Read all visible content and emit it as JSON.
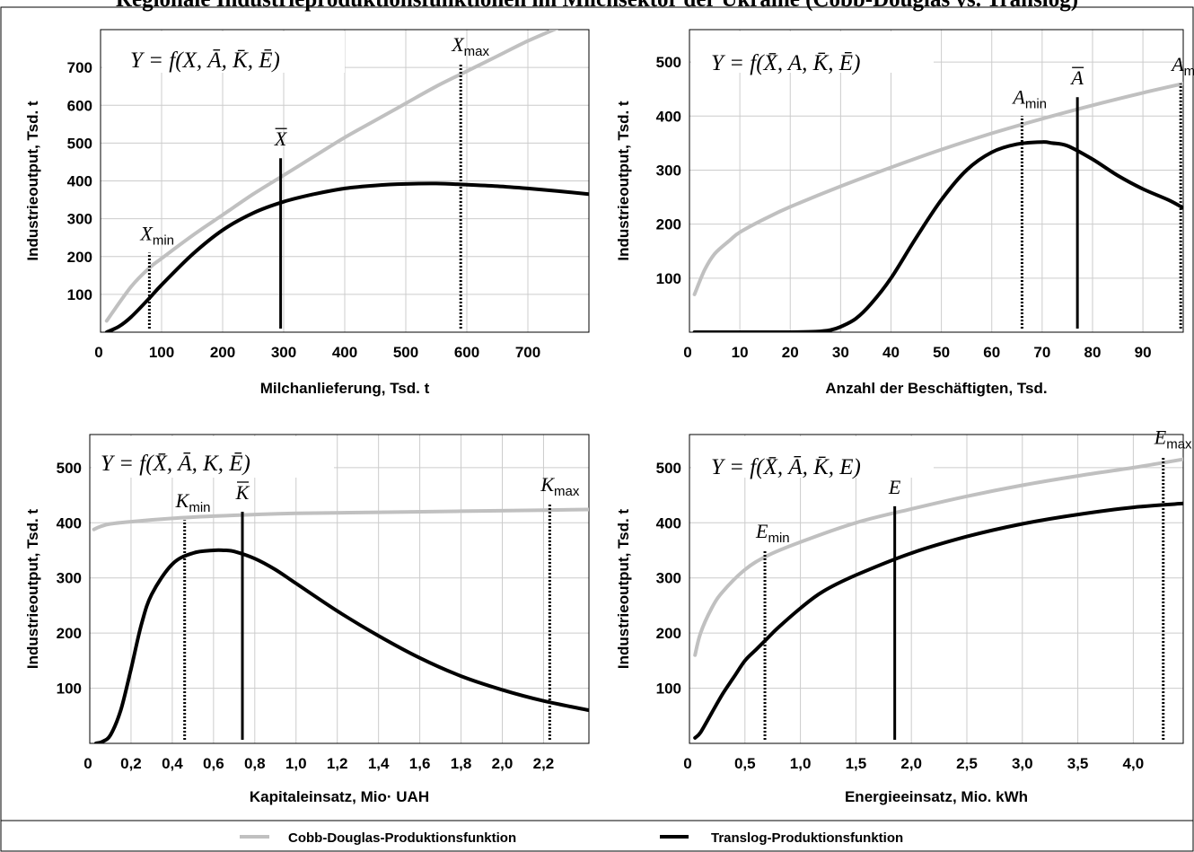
{
  "title": "Regionale Industrieproduktionsfunktionen im Milchsektor der Ukraine (Cobb-Douglas vs. Translog)",
  "legend": {
    "cobb_douglas": "Cobb-Douglas-Produktionsfunktion",
    "translog": "Translog-Produktionsfunktion"
  },
  "colors": {
    "cobb_douglas": "#c0c0c0",
    "translog": "#000000",
    "grid": "#cccccc"
  },
  "chart_data": [
    {
      "type": "line",
      "formula": "Y = f(X, Ā, K̄, Ē)",
      "ylabel": "Industrieoutput, Tsd. t",
      "xlabel": "Milchanlieferung, Tsd. t",
      "xlim": [
        0,
        800
      ],
      "ylim": [
        0,
        800
      ],
      "xticks": [
        100,
        200,
        300,
        400,
        500,
        600,
        700
      ],
      "xtick_labels": [
        "0",
        "100",
        "200",
        "300",
        "400",
        "500",
        "600",
        "700"
      ],
      "yticks": [
        100,
        200,
        300,
        400,
        500,
        600,
        700
      ],
      "ytick_labels": [
        "100",
        "200",
        "300",
        "400",
        "500",
        "600",
        "700"
      ],
      "grid": true,
      "series": [
        {
          "name": "Cobb-Douglas-Produktionsfunktion",
          "x": [
            10,
            50,
            80,
            100,
            150,
            200,
            250,
            300,
            350,
            400,
            450,
            500,
            550,
            600,
            650,
            700,
            750
          ],
          "y": [
            30,
            120,
            170,
            195,
            255,
            310,
            365,
            415,
            465,
            515,
            560,
            605,
            650,
            690,
            730,
            770,
            805
          ]
        },
        {
          "name": "Translog-Produktionsfunktion",
          "x": [
            10,
            30,
            50,
            80,
            100,
            150,
            200,
            250,
            300,
            350,
            400,
            450,
            500,
            550,
            600,
            650,
            700,
            750,
            800
          ],
          "y": [
            0,
            15,
            40,
            90,
            125,
            205,
            270,
            315,
            345,
            365,
            380,
            388,
            392,
            393,
            390,
            386,
            380,
            373,
            365
          ]
        }
      ],
      "markers": [
        {
          "label": "X",
          "sub": "min",
          "x": 80,
          "style": "dotted",
          "top": 210
        },
        {
          "label": "X",
          "sub": "",
          "bar": true,
          "x": 295,
          "style": "solid",
          "top": 460
        },
        {
          "label": "X",
          "sub": "max",
          "x": 590,
          "style": "dotted",
          "top": 710
        }
      ]
    },
    {
      "type": "line",
      "formula": "Y = f(X̄, A, K̄, Ē)",
      "ylabel": "Industrieoutput, Tsd. t",
      "xlabel": "Anzahl der Beschäftigten, Tsd.",
      "xlim": [
        0,
        98
      ],
      "ylim": [
        0,
        560
      ],
      "xticks": [
        10,
        20,
        30,
        40,
        50,
        60,
        70,
        80,
        90
      ],
      "xtick_labels": [
        "0",
        "10",
        "20",
        "30",
        "40",
        "50",
        "60",
        "70",
        "80",
        "90"
      ],
      "yticks": [
        100,
        200,
        300,
        400,
        500
      ],
      "ytick_labels": [
        "100",
        "200",
        "300",
        "400",
        "500"
      ],
      "grid": true,
      "series": [
        {
          "name": "Cobb-Douglas-Produktionsfunktion",
          "x": [
            1,
            3,
            5,
            8,
            10,
            15,
            20,
            30,
            40,
            50,
            60,
            70,
            80,
            90,
            98
          ],
          "y": [
            70,
            115,
            145,
            170,
            185,
            210,
            232,
            270,
            305,
            338,
            368,
            395,
            420,
            443,
            460
          ]
        },
        {
          "name": "Translog-Produktionsfunktion",
          "x": [
            1,
            10,
            20,
            25,
            28,
            30,
            33,
            36,
            40,
            45,
            50,
            55,
            60,
            65,
            70,
            72,
            75,
            80,
            85,
            90,
            95,
            98
          ],
          "y": [
            0,
            0,
            0,
            1,
            4,
            10,
            25,
            52,
            100,
            175,
            245,
            300,
            333,
            348,
            352,
            350,
            345,
            320,
            290,
            265,
            245,
            230
          ]
        }
      ],
      "markers": [
        {
          "label": "A",
          "sub": "min",
          "x": 66,
          "style": "dotted",
          "top": 400
        },
        {
          "label": "A",
          "sub": "",
          "bar": true,
          "x": 77,
          "style": "solid",
          "top": 435
        },
        {
          "label": "A",
          "sub": "max",
          "x": 97.5,
          "style": "dotted",
          "top": 460
        }
      ]
    },
    {
      "type": "line",
      "formula": "Y = f(X̄, Ā, K, Ē)",
      "ylabel": "Industrieoutput, Tsd. t",
      "xlabel": "Kapitaleinsatz, Mio· UAH",
      "xlim": [
        0,
        2.42
      ],
      "ylim": [
        0,
        560
      ],
      "xticks": [
        0.2,
        0.4,
        0.6,
        0.8,
        1.0,
        1.2,
        1.4,
        1.6,
        1.8,
        2.0,
        2.2
      ],
      "xtick_labels": [
        "0",
        "0,2",
        "0,4",
        "0,6",
        "0,8",
        "1,0",
        "1,2",
        "1,4",
        "1,6",
        "1,8",
        "2,0",
        "2,2"
      ],
      "yticks": [
        100,
        200,
        300,
        400,
        500
      ],
      "ytick_labels": [
        "100",
        "200",
        "300",
        "400",
        "500"
      ],
      "grid": true,
      "series": [
        {
          "name": "Cobb-Douglas-Produktionsfunktion",
          "x": [
            0.02,
            0.05,
            0.1,
            0.2,
            0.4,
            0.6,
            0.8,
            1.0,
            1.4,
            1.8,
            2.2,
            2.42
          ],
          "y": [
            388,
            393,
            398,
            402,
            408,
            412,
            415,
            417,
            419,
            421,
            423,
            424
          ]
        },
        {
          "name": "Translog-Produktionsfunktion",
          "x": [
            0.03,
            0.06,
            0.1,
            0.15,
            0.2,
            0.25,
            0.3,
            0.4,
            0.5,
            0.6,
            0.65,
            0.7,
            0.8,
            0.9,
            1.0,
            1.2,
            1.4,
            1.6,
            1.8,
            2.0,
            2.2,
            2.42
          ],
          "y": [
            0,
            3,
            15,
            60,
            135,
            215,
            270,
            325,
            345,
            350,
            350,
            348,
            335,
            315,
            290,
            240,
            195,
            155,
            122,
            97,
            77,
            60
          ]
        }
      ],
      "markers": [
        {
          "label": "K",
          "sub": "min",
          "x": 0.46,
          "style": "dotted",
          "top": 405
        },
        {
          "label": "K",
          "sub": "",
          "bar": true,
          "x": 0.74,
          "style": "solid",
          "top": 420
        },
        {
          "label": "K",
          "sub": "max",
          "x": 2.23,
          "style": "dotted",
          "top": 435
        }
      ]
    },
    {
      "type": "line",
      "formula": "Y = f(X̄, Ā, K̄, E)",
      "ylabel": "Industrieoutput, Tsd. t",
      "xlabel": "Energieeinsatz, Mio. kWh",
      "xlim": [
        0,
        4.45
      ],
      "ylim": [
        0,
        560
      ],
      "xticks": [
        0.5,
        1.0,
        1.5,
        2.0,
        2.5,
        3.0,
        3.5,
        4.0
      ],
      "xtick_labels": [
        "0",
        "0,5",
        "1,0",
        "1,5",
        "2,0",
        "2,5",
        "3,0",
        "3,5",
        "4,0"
      ],
      "yticks": [
        100,
        200,
        300,
        400,
        500
      ],
      "ytick_labels": [
        "100",
        "200",
        "300",
        "400",
        "500"
      ],
      "grid": true,
      "series": [
        {
          "name": "Cobb-Douglas-Produktionsfunktion",
          "x": [
            0.05,
            0.1,
            0.2,
            0.3,
            0.5,
            0.7,
            1.0,
            1.5,
            2.0,
            2.5,
            3.0,
            3.5,
            4.0,
            4.45
          ],
          "y": [
            160,
            200,
            245,
            275,
            315,
            340,
            365,
            400,
            425,
            448,
            468,
            485,
            500,
            515
          ]
        },
        {
          "name": "Translog-Produktionsfunktion",
          "x": [
            0.05,
            0.1,
            0.2,
            0.3,
            0.4,
            0.5,
            0.6,
            0.7,
            0.8,
            1.0,
            1.2,
            1.5,
            2.0,
            2.5,
            3.0,
            3.5,
            4.0,
            4.45
          ],
          "y": [
            10,
            20,
            55,
            90,
            120,
            150,
            170,
            190,
            210,
            245,
            275,
            305,
            345,
            375,
            398,
            415,
            428,
            435
          ]
        }
      ],
      "markers": [
        {
          "label": "E",
          "sub": "min",
          "x": 0.68,
          "style": "dotted",
          "top": 350
        },
        {
          "label": "E",
          "sub": "",
          "bar": true,
          "x": 1.85,
          "style": "solid",
          "top": 430
        },
        {
          "label": "E",
          "sub": "max",
          "x": 4.27,
          "style": "dotted",
          "top": 520
        }
      ]
    }
  ]
}
